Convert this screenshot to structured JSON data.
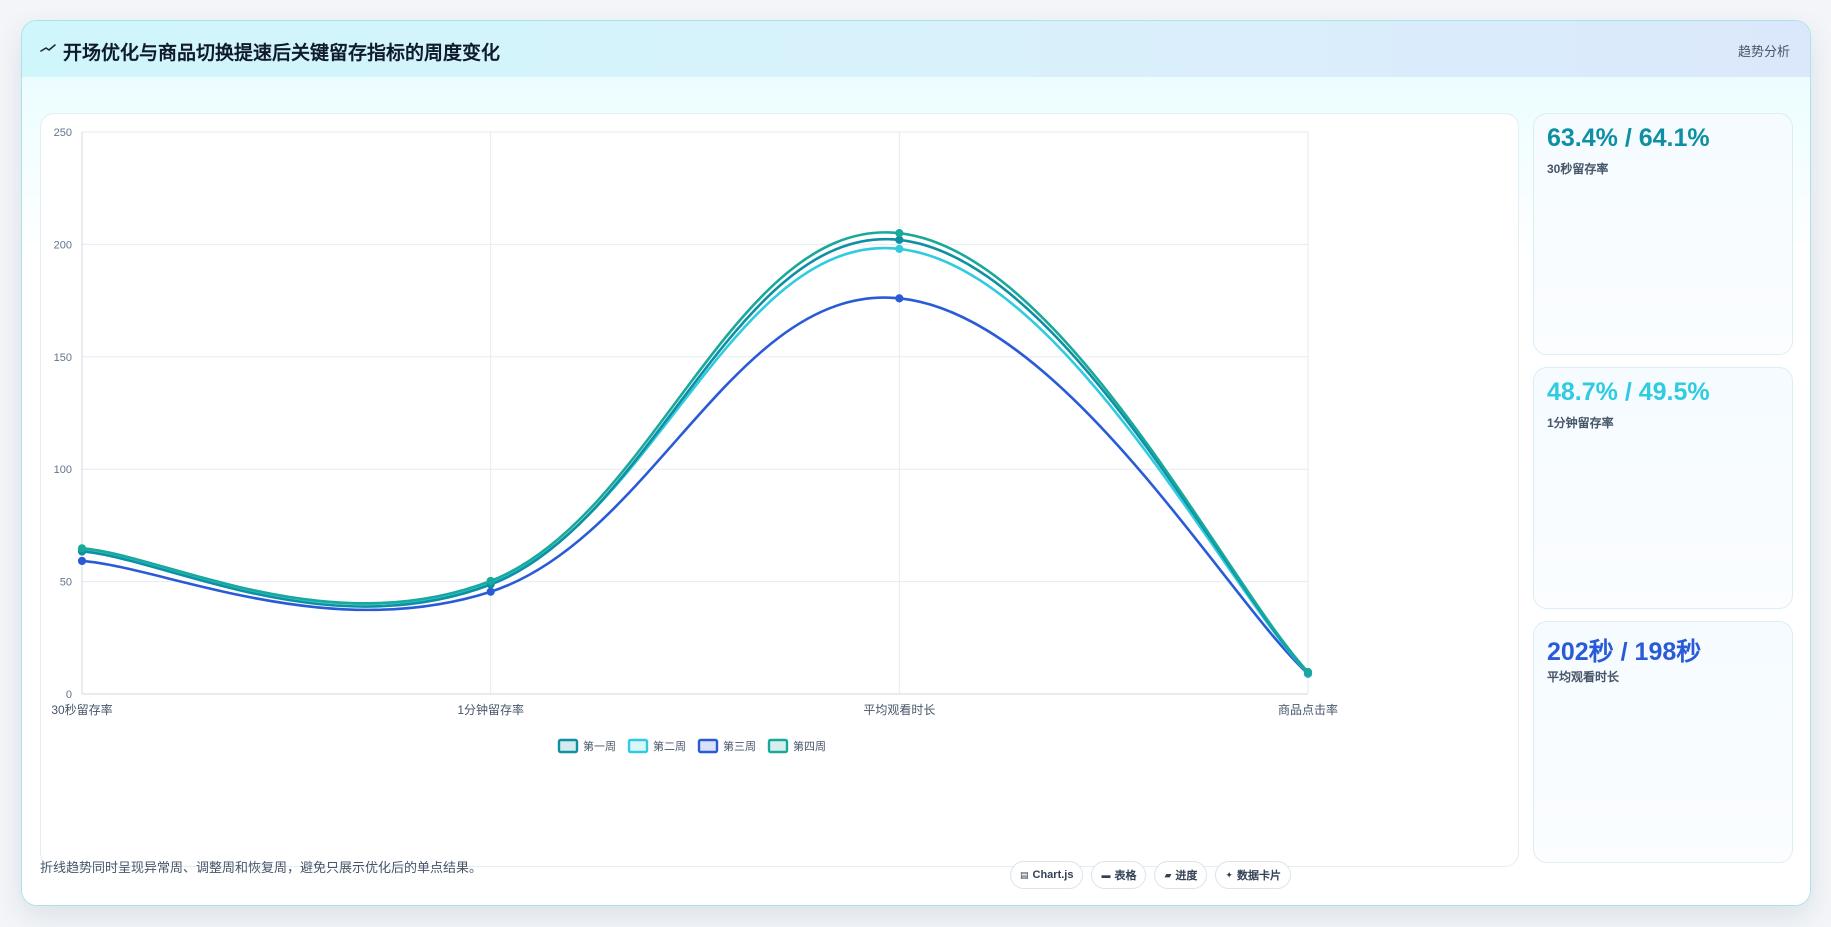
{
  "header": {
    "title": "开场优化与商品切换提速后关键留存指标的周度变化",
    "tag": "趋势分析"
  },
  "chart_data": {
    "type": "line",
    "title": "",
    "xlabel": "",
    "ylabel": "",
    "categories": [
      "30秒留存率",
      "1分钟留存率",
      "平均观看时长",
      "商品点击率"
    ],
    "ylim": [
      0,
      250
    ],
    "yticks": [
      0,
      50,
      100,
      150,
      200,
      250
    ],
    "grid": true,
    "smooth": true,
    "legend_position": "bottom",
    "series": [
      {
        "name": "第一周",
        "color": "#0e8fa3",
        "values": [
          63.4,
          48.7,
          202,
          9.5
        ]
      },
      {
        "name": "第二周",
        "color": "#2fcbe0",
        "values": [
          64.1,
          49.5,
          198,
          9.2
        ]
      },
      {
        "name": "第三周",
        "color": "#2a5bd7",
        "values": [
          59.2,
          45.5,
          176,
          9.0
        ]
      },
      {
        "name": "第四周",
        "color": "#19a99a",
        "values": [
          64.8,
          50.3,
          205,
          9.8
        ]
      }
    ]
  },
  "stats": [
    {
      "value": "63.4% / 64.1%",
      "label": "30秒留存率",
      "color": "#0e8fa3"
    },
    {
      "value": "48.7% / 49.5%",
      "label": "1分钟留存率",
      "color": "#2fcbe0"
    },
    {
      "value": "202秒 / 198秒",
      "label": "平均观看时长",
      "color": "#2a5bd7"
    }
  ],
  "footer": {
    "note": "折线趋势同时呈现异常周、调整周和恢复周，避免只展示优化后的单点结果。",
    "chips": [
      {
        "icon": "chart-icon",
        "glyph": "▤",
        "label": "Chart.js"
      },
      {
        "icon": "table-icon",
        "glyph": "▬",
        "label": "表格"
      },
      {
        "icon": "progress-icon",
        "glyph": "▰",
        "label": "进度"
      },
      {
        "icon": "sparkle-icon",
        "glyph": "✦",
        "label": "数据卡片"
      }
    ]
  }
}
